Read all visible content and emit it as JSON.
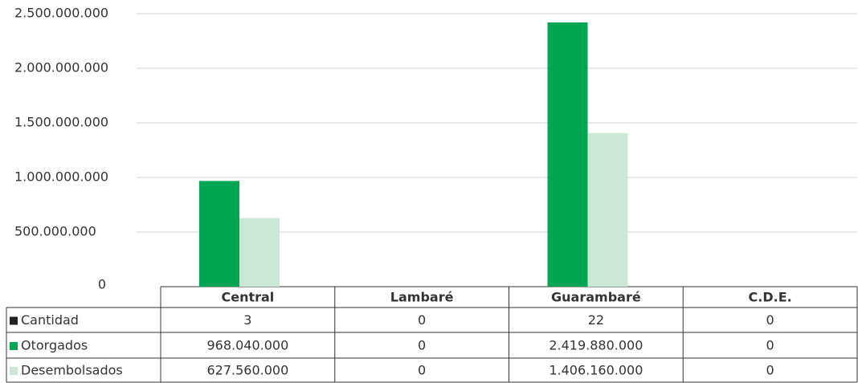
{
  "chart_data": {
    "type": "bar",
    "categories": [
      "Central",
      "Lambaré",
      "Guarambaré",
      "C.D.E."
    ],
    "series": [
      {
        "name": "Cantidad",
        "color": "#222222",
        "values": [
          3,
          0,
          22,
          0
        ]
      },
      {
        "name": "Otorgados",
        "color": "#00a651",
        "values": [
          968040000,
          0,
          2419880000,
          0
        ],
        "value_labels": [
          "968.040.000",
          "0",
          "2.419.880.000",
          "0"
        ]
      },
      {
        "name": "Desembolsados",
        "color": "#cbe8d7",
        "values": [
          627560000,
          0,
          1406160000,
          0
        ],
        "value_labels": [
          "627.560.000",
          "0",
          "1.406.160.000",
          "0"
        ]
      }
    ],
    "ylim": [
      0,
      2500000000
    ],
    "yticks": [
      0,
      {
        "value": 500000000,
        "label": "500.000.000"
      },
      {
        "value": 1000000000,
        "label": "1.000.000.000"
      },
      {
        "value": 1500000000,
        "label": "1.500.000.000"
      },
      {
        "value": 2000000000,
        "label": "2.000.000.000"
      },
      {
        "value": 2500000000,
        "label": "2.500.000.000"
      }
    ],
    "grid": true
  }
}
